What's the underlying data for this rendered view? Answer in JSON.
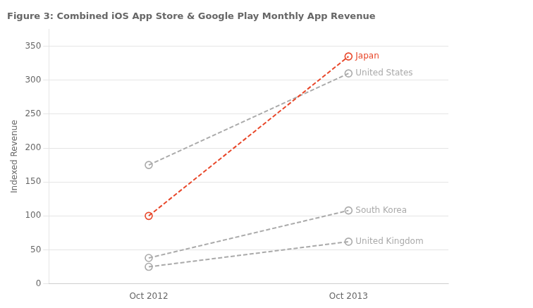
{
  "chart_data": {
    "type": "line",
    "title": "Figure 3: Combined iOS App Store & Google Play Monthly App Revenue",
    "ylabel": "Indexed Revenue",
    "categories": [
      "Oct 2012",
      "Oct 2013"
    ],
    "series": [
      {
        "name": "Japan",
        "color": "#e8472a",
        "values": [
          100,
          335
        ]
      },
      {
        "name": "United States",
        "color": "#aaaaaa",
        "values": [
          175,
          310
        ]
      },
      {
        "name": "South Korea",
        "color": "#aaaaaa",
        "values": [
          38,
          108
        ]
      },
      {
        "name": "United Kingdom",
        "color": "#aaaaaa",
        "values": [
          25,
          62
        ]
      }
    ],
    "ylim": [
      0,
      375
    ],
    "yticks": [
      0,
      50,
      100,
      150,
      200,
      250,
      300,
      350
    ],
    "grid": true,
    "line_style": "dashed",
    "marker": "circle"
  }
}
